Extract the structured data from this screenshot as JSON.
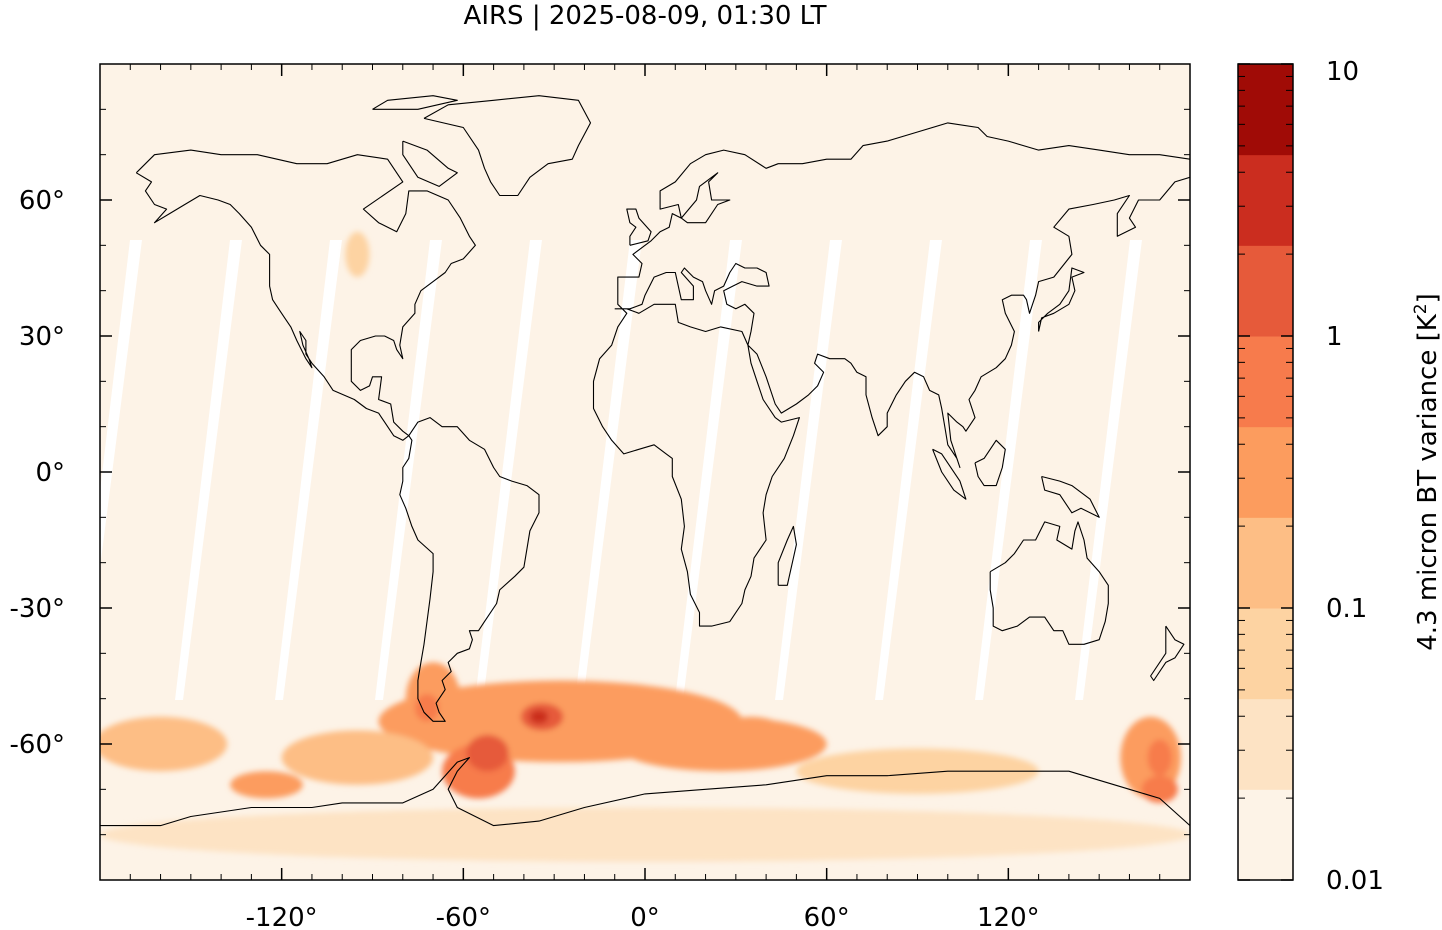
{
  "chart_data": {
    "type": "heatmap",
    "title": "AIRS | 2025-08-09, 01:30 LT",
    "xlabel": "",
    "ylabel": "",
    "xlim": [
      -180,
      180
    ],
    "ylim": [
      -90,
      90
    ],
    "x_ticks": [
      -120,
      -60,
      0,
      60,
      120
    ],
    "x_tick_labels": [
      "-120°",
      "-60°",
      "0°",
      "60°",
      "120°"
    ],
    "y_ticks": [
      60,
      30,
      0,
      -30,
      -60
    ],
    "y_tick_labels": [
      "60°",
      "30°",
      "0°",
      "-30°",
      "-60°"
    ],
    "grid": false,
    "colorbar": {
      "label": "4.3 micron BT variance [K²]",
      "label_text": "4.3 micron BT variance [K",
      "label_sup": "2",
      "label_end": "]",
      "scale": "log",
      "range": [
        0.01,
        10
      ],
      "tick_values": [
        10,
        1,
        0.1,
        0.01
      ],
      "tick_labels": [
        "10",
        "1",
        "0.1",
        "0.01"
      ],
      "colors": [
        "#fdf3e7",
        "#fde3c4",
        "#fdd3a2",
        "#fdbe85",
        "#fc9c5e",
        "#f77b4c",
        "#e65a3a",
        "#cb2d1f",
        "#a00b06"
      ]
    },
    "blobs": [
      {
        "lon": -28,
        "lat": -55,
        "rx": 60,
        "ry": 9,
        "v": 0.25
      },
      {
        "lon": -40,
        "lat": -57,
        "rx": 26,
        "ry": 6,
        "v": 0.45
      },
      {
        "lon": -34,
        "lat": -54,
        "rx": 7,
        "ry": 3,
        "v": 1.6
      },
      {
        "lon": -35,
        "lat": -54,
        "rx": 3,
        "ry": 1.5,
        "v": 3.5
      },
      {
        "lon": -55,
        "lat": -66,
        "rx": 12,
        "ry": 6,
        "v": 0.8
      },
      {
        "lon": -52,
        "lat": -62,
        "rx": 7,
        "ry": 4,
        "v": 1.4
      },
      {
        "lon": -70,
        "lat": -50,
        "rx": 9,
        "ry": 8,
        "v": 0.35
      },
      {
        "lon": -72,
        "lat": -52,
        "rx": 4,
        "ry": 3,
        "v": 0.9
      },
      {
        "lon": 25,
        "lat": -60,
        "rx": 35,
        "ry": 6,
        "v": 0.25
      },
      {
        "lon": 35,
        "lat": -58,
        "rx": 12,
        "ry": 4,
        "v": 0.45
      },
      {
        "lon": -160,
        "lat": -60,
        "rx": 22,
        "ry": 6,
        "v": 0.12
      },
      {
        "lon": -125,
        "lat": -69,
        "rx": 12,
        "ry": 3,
        "v": 0.45
      },
      {
        "lon": -95,
        "lat": -63,
        "rx": 25,
        "ry": 6,
        "v": 0.15
      },
      {
        "lon": 90,
        "lat": -66,
        "rx": 40,
        "ry": 5,
        "v": 0.07
      },
      {
        "lon": 167,
        "lat": -63,
        "rx": 10,
        "ry": 9,
        "v": 0.25
      },
      {
        "lon": 170,
        "lat": -63,
        "rx": 4,
        "ry": 4,
        "v": 0.8
      },
      {
        "lon": 170,
        "lat": -70,
        "rx": 6,
        "ry": 3,
        "v": 0.9
      },
      {
        "lon": -95,
        "lat": 48,
        "rx": 4,
        "ry": 5,
        "v": 0.05
      },
      {
        "lon": 0,
        "lat": -80,
        "rx": 180,
        "ry": 6,
        "v": 0.03
      }
    ]
  }
}
